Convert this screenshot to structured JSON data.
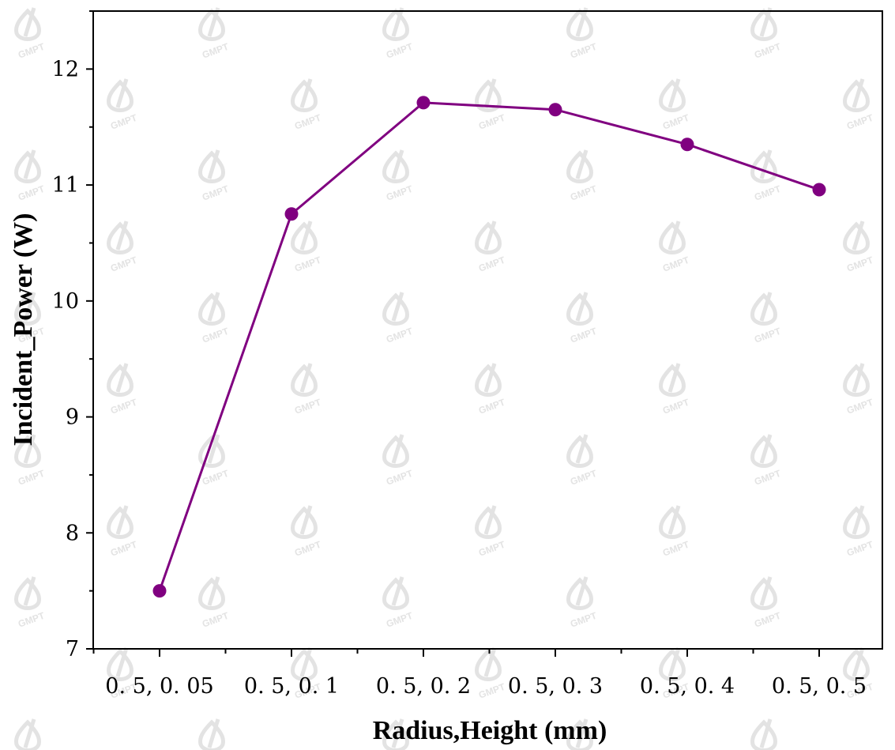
{
  "chart_data": {
    "type": "line",
    "categories": [
      "0. 5, 0. 05",
      "0. 5, 0. 1",
      "0. 5, 0. 2",
      "0. 5, 0. 3",
      "0. 5, 0. 4",
      "0. 5, 0. 5"
    ],
    "series": [
      {
        "values": [
          7.5,
          10.75,
          11.71,
          11.65,
          11.35,
          10.96
        ],
        "color": "#800080"
      }
    ],
    "xlabel": "Radius,Height (mm)",
    "ylabel": "Incident_Power (W)",
    "ylim": [
      7,
      12.5
    ],
    "yticks": [
      "7",
      "8",
      "9",
      "10",
      "11",
      "12"
    ],
    "grid": false,
    "legend": "none"
  },
  "watermark": {
    "text": "GMPT",
    "icon": "gmpt-logo-icon",
    "color": "#e3e3e3"
  }
}
